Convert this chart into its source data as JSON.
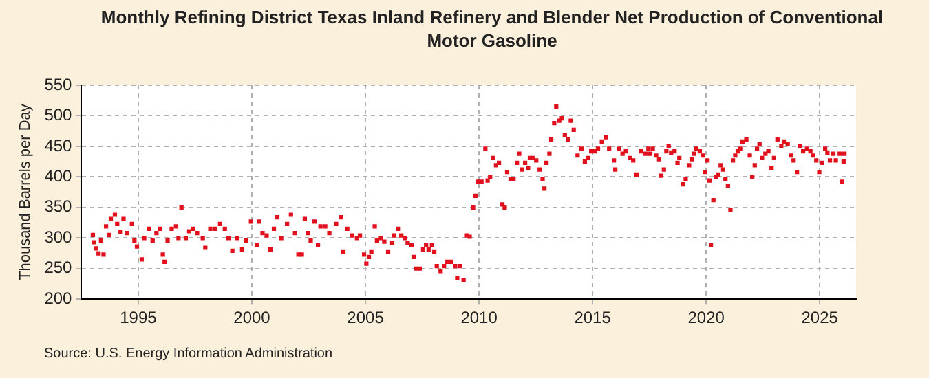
{
  "chart_data": {
    "type": "scatter",
    "title": "Monthly Refining District Texas Inland Refinery and Blender Net Production of Conventional Motor Gasoline",
    "ylabel": "Thousand Barrels per Day",
    "annotations": [
      "Source: U.S. Energy Information Administration"
    ],
    "x": [
      1993.0,
      1993.04,
      1993.15,
      1993.25,
      1993.36,
      1993.47,
      1993.58,
      1993.71,
      1993.79,
      1993.97,
      1994.07,
      1994.22,
      1994.35,
      1994.5,
      1994.72,
      1994.83,
      1994.94,
      1995.15,
      1995.26,
      1995.47,
      1995.63,
      1995.8,
      1995.95,
      1996.08,
      1996.16,
      1996.29,
      1996.47,
      1996.66,
      1996.77,
      1996.9,
      1997.09,
      1997.24,
      1997.41,
      1997.59,
      1997.84,
      1997.95,
      1998.17,
      1998.38,
      1998.6,
      1998.81,
      1998.97,
      1999.14,
      1999.35,
      1999.57,
      1999.74,
      1999.96,
      2000.22,
      2000.32,
      2000.47,
      2000.65,
      2000.82,
      2000.97,
      2001.12,
      2001.29,
      2001.55,
      2001.72,
      2001.9,
      2002.05,
      2002.2,
      2002.33,
      2002.48,
      2002.59,
      2002.76,
      2002.91,
      2003.02,
      2003.23,
      2003.41,
      2003.71,
      2003.93,
      2004.03,
      2004.2,
      2004.42,
      2004.63,
      2004.76,
      2004.94,
      2005.04,
      2005.15,
      2005.26,
      2005.41,
      2005.51,
      2005.68,
      2005.83,
      2006.0,
      2006.18,
      2006.26,
      2006.43,
      2006.58,
      2006.75,
      2006.86,
      2007.03,
      2007.12,
      2007.24,
      2007.39,
      2007.54,
      2007.67,
      2007.78,
      2007.93,
      2008.03,
      2008.14,
      2008.31,
      2008.46,
      2008.61,
      2008.78,
      2008.95,
      2009.04,
      2009.17,
      2009.32,
      2009.47,
      2009.59,
      2009.74,
      2009.85,
      2009.96,
      2010.11,
      2010.28,
      2010.38,
      2010.49,
      2010.62,
      2010.75,
      2010.88,
      2011.03,
      2011.13,
      2011.24,
      2011.39,
      2011.52,
      2011.67,
      2011.77,
      2011.9,
      2012.03,
      2012.16,
      2012.24,
      2012.37,
      2012.52,
      2012.67,
      2012.8,
      2012.88,
      2012.97,
      2013.1,
      2013.18,
      2013.31,
      2013.4,
      2013.53,
      2013.65,
      2013.78,
      2013.91,
      2014.04,
      2014.17,
      2014.34,
      2014.51,
      2014.66,
      2014.81,
      2014.94,
      2015.09,
      2015.24,
      2015.41,
      2015.58,
      2015.73,
      2015.94,
      2016.0,
      2016.15,
      2016.32,
      2016.47,
      2016.65,
      2016.79,
      2016.94,
      2017.12,
      2017.33,
      2017.46,
      2017.54,
      2017.65,
      2017.8,
      2017.93,
      2018.01,
      2018.14,
      2018.25,
      2018.35,
      2018.46,
      2018.61,
      2018.74,
      2018.82,
      2018.99,
      2019.1,
      2019.25,
      2019.36,
      2019.47,
      2019.57,
      2019.72,
      2019.85,
      2019.94,
      2020.06,
      2020.15,
      2020.21,
      2020.32,
      2020.43,
      2020.53,
      2020.64,
      2020.75,
      2020.85,
      2020.96,
      2021.07,
      2021.18,
      2021.28,
      2021.39,
      2021.5,
      2021.6,
      2021.77,
      2021.92,
      2022.03,
      2022.14,
      2022.24,
      2022.35,
      2022.46,
      2022.61,
      2022.74,
      2022.88,
      2022.99,
      2023.14,
      2023.31,
      2023.42,
      2023.59,
      2023.74,
      2023.85,
      2024.0,
      2024.12,
      2024.27,
      2024.44,
      2024.59,
      2024.7,
      2024.85,
      2024.98,
      2025.11,
      2025.24,
      2025.34,
      2025.45,
      2025.6,
      2025.71,
      2025.88,
      2025.98,
      2026.05,
      2026.09
    ],
    "values": [
      305,
      293,
      283,
      275,
      296,
      273,
      319,
      305,
      331,
      338,
      323,
      310,
      331,
      308,
      323,
      296,
      286,
      265,
      300,
      315,
      296,
      308,
      315,
      273,
      261,
      296,
      315,
      319,
      300,
      350,
      300,
      311,
      315,
      308,
      300,
      284,
      315,
      315,
      323,
      315,
      300,
      279,
      300,
      281,
      296,
      327,
      288,
      327,
      308,
      304,
      281,
      315,
      334,
      300,
      323,
      338,
      308,
      273,
      273,
      331,
      308,
      296,
      327,
      288,
      319,
      319,
      308,
      323,
      334,
      277,
      315,
      304,
      300,
      304,
      273,
      258,
      269,
      277,
      319,
      296,
      300,
      294,
      277,
      292,
      304,
      315,
      304,
      300,
      292,
      288,
      269,
      250,
      250,
      281,
      288,
      281,
      288,
      277,
      254,
      246,
      254,
      261,
      261,
      254,
      235,
      254,
      231,
      304,
      302,
      350,
      369,
      392,
      392,
      446,
      394,
      400,
      431,
      419,
      423,
      355,
      350,
      408,
      396,
      396,
      423,
      438,
      412,
      423,
      415,
      431,
      431,
      427,
      412,
      396,
      381,
      423,
      438,
      461,
      488,
      515,
      492,
      496,
      469,
      461,
      492,
      477,
      435,
      446,
      425,
      431,
      442,
      442,
      446,
      458,
      465,
      446,
      427,
      412,
      446,
      438,
      442,
      431,
      427,
      404,
      442,
      438,
      446,
      438,
      446,
      435,
      429,
      402,
      412,
      442,
      450,
      440,
      442,
      423,
      431,
      388,
      396,
      419,
      429,
      438,
      446,
      442,
      435,
      408,
      427,
      394,
      288,
      362,
      400,
      404,
      419,
      412,
      396,
      385,
      346,
      427,
      435,
      442,
      446,
      458,
      461,
      435,
      400,
      419,
      446,
      454,
      431,
      438,
      442,
      415,
      431,
      461,
      450,
      458,
      454,
      435,
      427,
      408,
      450,
      442,
      446,
      442,
      435,
      427,
      408,
      423,
      446,
      440,
      427,
      438,
      427,
      438,
      392,
      425,
      438
    ],
    "color": "#e0101c",
    "marker": "square",
    "xlim": [
      1992.5,
      2026.6
    ],
    "xticks": [
      1995,
      2000,
      2005,
      2010,
      2015,
      2020,
      2025
    ],
    "ylim": [
      200,
      550
    ],
    "yticks": [
      200,
      250,
      300,
      350,
      400,
      450,
      500,
      550
    ],
    "grid": true,
    "legend": false
  }
}
